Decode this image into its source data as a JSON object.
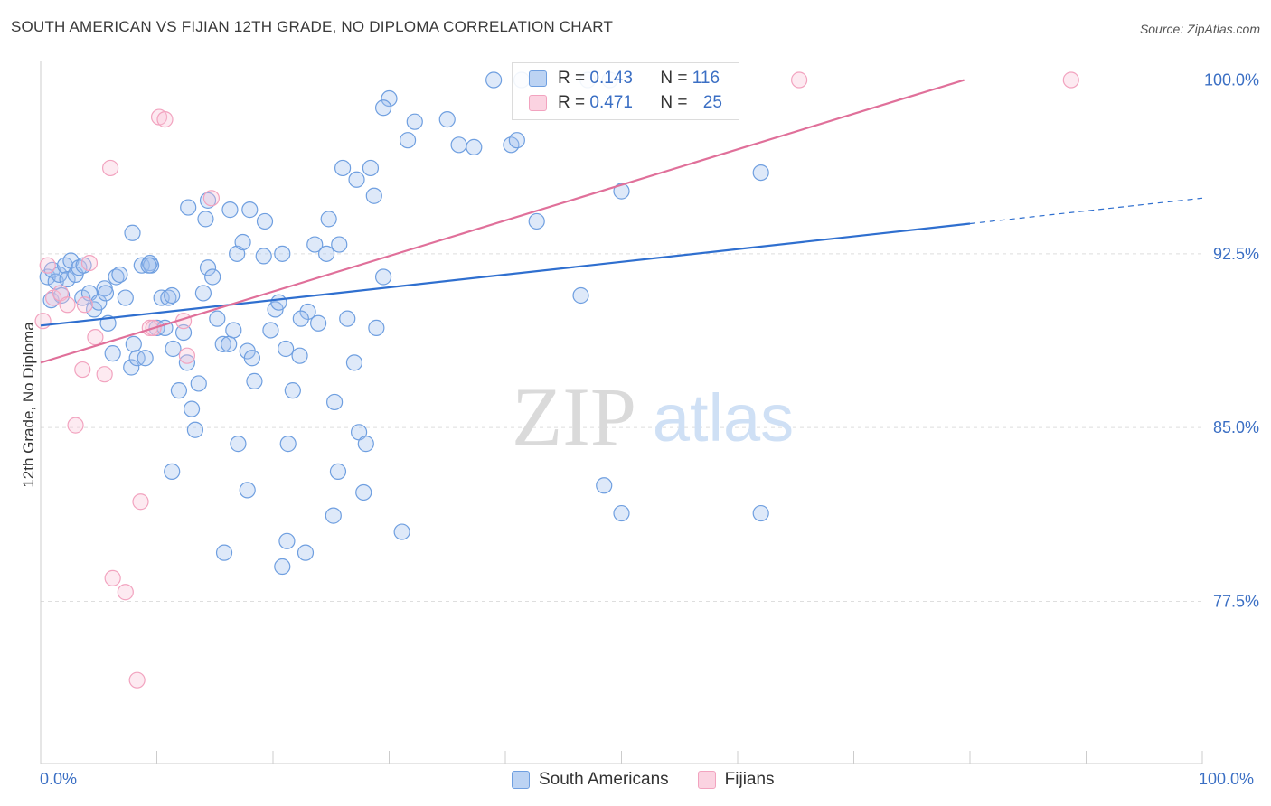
{
  "title": "SOUTH AMERICAN VS FIJIAN 12TH GRADE, NO DIPLOMA CORRELATION CHART",
  "source": "Source: ZipAtlas.com",
  "watermark": {
    "zip": "ZIP",
    "atlas": "atlas"
  },
  "legend": {
    "rows": [
      {
        "r_label": "R = ",
        "r_value": "0.143",
        "n_label": "N = ",
        "n_value": "116"
      },
      {
        "r_label": "R = ",
        "r_value": "0.471",
        "n_label": "N = ",
        "n_value": "25"
      }
    ]
  },
  "bottom_legend": {
    "series_a": "South Americans",
    "series_b": "Fijians"
  },
  "x_axis": {
    "left_label": "0.0%",
    "right_label": "100.0%"
  },
  "colors": {
    "blue": "#6f9fe0",
    "blue_line": "#2f6fcf",
    "pink": "#f2a3bf",
    "pink_line": "#e0709a",
    "axis_text": "#3b6fc4"
  },
  "chart_data": {
    "type": "scatter",
    "title": "SOUTH AMERICAN VS FIJIAN 12TH GRADE, NO DIPLOMA CORRELATION CHART",
    "xlabel": "",
    "ylabel": "12th Grade, No Diploma",
    "xlim": [
      0,
      100
    ],
    "ylim": [
      70.5,
      100.8
    ],
    "y_ticks": [
      {
        "value": 100.0,
        "label": "100.0%"
      },
      {
        "value": 92.5,
        "label": "92.5%"
      },
      {
        "value": 85.0,
        "label": "85.0%"
      },
      {
        "value": 77.5,
        "label": "77.5%"
      }
    ],
    "x_ticks": [
      0,
      10,
      20,
      30,
      40,
      50,
      60,
      70,
      80,
      90,
      100
    ],
    "grid": true,
    "legend_position": "top-center",
    "series": [
      {
        "name": "South Americans",
        "color": "#6f9fe0",
        "r": 0.143,
        "n": 116,
        "trend": {
          "x": [
            0,
            80,
            100
          ],
          "y": [
            89.4,
            93.8,
            94.9
          ],
          "dashed_from": 80
        },
        "points": [
          [
            0.6,
            91.5
          ],
          [
            0.9,
            90.5
          ],
          [
            1.0,
            91.8
          ],
          [
            1.3,
            91.3
          ],
          [
            1.6,
            91.6
          ],
          [
            1.8,
            90.7
          ],
          [
            2.1,
            92.0
          ],
          [
            2.3,
            91.4
          ],
          [
            2.6,
            92.2
          ],
          [
            3.0,
            91.6
          ],
          [
            3.3,
            91.9
          ],
          [
            3.6,
            90.6
          ],
          [
            4.2,
            90.8
          ],
          [
            4.6,
            90.1
          ],
          [
            5.0,
            90.4
          ],
          [
            5.5,
            91.0
          ],
          [
            5.8,
            89.5
          ],
          [
            6.5,
            91.5
          ],
          [
            7.3,
            90.6
          ],
          [
            8.0,
            88.6
          ],
          [
            6.2,
            88.2
          ],
          [
            7.8,
            87.6
          ],
          [
            8.3,
            88.0
          ],
          [
            9.0,
            88.0
          ],
          [
            8.7,
            92.0
          ],
          [
            9.4,
            92.1
          ],
          [
            9.5,
            92.0
          ],
          [
            10.0,
            89.3
          ],
          [
            10.4,
            90.6
          ],
          [
            10.7,
            89.3
          ],
          [
            11.0,
            90.6
          ],
          [
            11.4,
            88.4
          ],
          [
            11.9,
            86.6
          ],
          [
            12.3,
            89.1
          ],
          [
            12.6,
            87.8
          ],
          [
            13.0,
            85.8
          ],
          [
            13.3,
            84.9
          ],
          [
            13.6,
            86.9
          ],
          [
            14.0,
            90.8
          ],
          [
            14.4,
            91.9
          ],
          [
            14.8,
            91.5
          ],
          [
            15.2,
            89.7
          ],
          [
            15.7,
            88.6
          ],
          [
            16.2,
            88.6
          ],
          [
            16.6,
            89.2
          ],
          [
            16.9,
            92.5
          ],
          [
            17.4,
            93.0
          ],
          [
            17.8,
            88.3
          ],
          [
            18.2,
            88.0
          ],
          [
            17.0,
            84.3
          ],
          [
            18.4,
            87.0
          ],
          [
            19.2,
            92.4
          ],
          [
            19.8,
            89.2
          ],
          [
            20.2,
            90.1
          ],
          [
            20.8,
            92.5
          ],
          [
            21.3,
            84.3
          ],
          [
            21.7,
            86.6
          ],
          [
            22.3,
            88.1
          ],
          [
            23.0,
            90.0
          ],
          [
            23.9,
            89.5
          ],
          [
            24.6,
            92.5
          ],
          [
            25.3,
            86.1
          ],
          [
            25.7,
            92.9
          ],
          [
            26.4,
            89.7
          ],
          [
            27.0,
            87.8
          ],
          [
            27.4,
            84.8
          ],
          [
            28.0,
            84.3
          ],
          [
            28.9,
            89.3
          ],
          [
            29.5,
            91.5
          ],
          [
            28.4,
            96.2
          ],
          [
            28.7,
            95.0
          ],
          [
            27.2,
            95.7
          ],
          [
            26.0,
            96.2
          ],
          [
            24.8,
            94.0
          ],
          [
            23.6,
            92.9
          ],
          [
            22.4,
            89.7
          ],
          [
            21.1,
            88.4
          ],
          [
            20.5,
            90.4
          ],
          [
            19.3,
            93.9
          ],
          [
            18.0,
            94.4
          ],
          [
            16.3,
            94.4
          ],
          [
            14.4,
            94.8
          ],
          [
            14.2,
            94.0
          ],
          [
            12.7,
            94.5
          ],
          [
            11.3,
            90.7
          ],
          [
            9.3,
            92.0
          ],
          [
            7.9,
            93.4
          ],
          [
            6.8,
            91.6
          ],
          [
            5.6,
            90.8
          ],
          [
            3.7,
            92.0
          ],
          [
            17.8,
            82.3
          ],
          [
            21.2,
            80.1
          ],
          [
            22.8,
            79.6
          ],
          [
            25.2,
            81.2
          ],
          [
            25.6,
            83.1
          ],
          [
            27.8,
            82.2
          ],
          [
            31.1,
            80.5
          ],
          [
            20.8,
            79.0
          ],
          [
            11.3,
            83.1
          ],
          [
            15.8,
            79.6
          ],
          [
            39.0,
            100.0
          ],
          [
            41.4,
            100.0
          ],
          [
            47.1,
            100.0
          ],
          [
            49.0,
            100.0
          ],
          [
            30.0,
            99.2
          ],
          [
            29.5,
            98.8
          ],
          [
            32.2,
            98.2
          ],
          [
            31.6,
            97.4
          ],
          [
            35.0,
            98.3
          ],
          [
            36.0,
            97.2
          ],
          [
            37.3,
            97.1
          ],
          [
            40.5,
            97.2
          ],
          [
            41.0,
            97.4
          ],
          [
            42.7,
            93.9
          ],
          [
            46.5,
            90.7
          ],
          [
            48.5,
            82.5
          ],
          [
            50.0,
            81.3
          ],
          [
            62.0,
            81.3
          ],
          [
            62.0,
            96.0
          ],
          [
            50.0,
            95.2
          ]
        ]
      },
      {
        "name": "Fijians",
        "color": "#f2a3bf",
        "r": 0.471,
        "n": 25,
        "trend": {
          "x": [
            0,
            79.5
          ],
          "y": [
            87.8,
            100.0
          ]
        },
        "points": [
          [
            0.2,
            89.6
          ],
          [
            0.6,
            92.0
          ],
          [
            1.1,
            90.6
          ],
          [
            1.7,
            90.8
          ],
          [
            2.3,
            90.3
          ],
          [
            3.0,
            85.1
          ],
          [
            3.6,
            87.5
          ],
          [
            4.7,
            88.9
          ],
          [
            5.5,
            87.3
          ],
          [
            6.2,
            78.5
          ],
          [
            7.3,
            77.9
          ],
          [
            8.6,
            81.8
          ],
          [
            9.4,
            89.3
          ],
          [
            10.2,
            98.4
          ],
          [
            10.7,
            98.3
          ],
          [
            6.0,
            96.2
          ],
          [
            9.7,
            89.3
          ],
          [
            12.6,
            88.1
          ],
          [
            12.3,
            89.6
          ],
          [
            14.7,
            94.9
          ],
          [
            8.3,
            74.1
          ],
          [
            65.3,
            100.0
          ],
          [
            88.7,
            100.0
          ],
          [
            4.2,
            92.1
          ],
          [
            3.8,
            90.3
          ]
        ]
      }
    ]
  }
}
